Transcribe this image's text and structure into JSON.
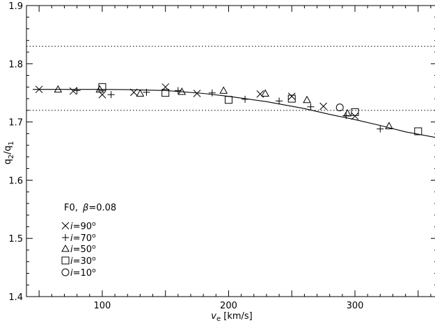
{
  "chart_data": {
    "type": "scatter",
    "title": "",
    "xlabel_main": "v",
    "xlabel_sub": "e",
    "xlabel_unit": " [km/s]",
    "ylabel_main": "q",
    "ylabel_sub1": "2",
    "ylabel_slash": "/q",
    "ylabel_sub2": "1",
    "xlim": [
      40,
      365
    ],
    "ylim": [
      1.4,
      1.9
    ],
    "xticks": [
      100,
      200,
      300
    ],
    "yticks": [
      1.4,
      1.5,
      1.6,
      1.7,
      1.8,
      1.9
    ],
    "ytick_labels": [
      "1.4",
      "1.5",
      "1.6",
      "1.7",
      "1.8",
      "1.9"
    ],
    "hlines": [
      1.83,
      1.72
    ],
    "hline_style": "dotted",
    "annotation": {
      "model": "F0,",
      "beta_symbol": "β",
      "beta_value": "=0.08"
    },
    "legend_placement": "bottom-left",
    "fit_curve": {
      "x": [
        45,
        80,
        100,
        120,
        150,
        180,
        200,
        230,
        260,
        280,
        300,
        320,
        340,
        365
      ],
      "y": [
        1.756,
        1.756,
        1.756,
        1.7555,
        1.754,
        1.749,
        1.744,
        1.735,
        1.723,
        1.713,
        1.704,
        1.694,
        1.683,
        1.673
      ]
    },
    "series": [
      {
        "name": "i=90°",
        "label_i": "i",
        "label_val": "=90",
        "label_deg": "o",
        "marker": "x",
        "x": [
          50,
          77,
          100,
          125,
          150,
          175,
          225,
          250,
          275,
          300
        ],
        "y": [
          1.756,
          1.753,
          1.747,
          1.751,
          1.76,
          1.749,
          1.748,
          1.744,
          1.727,
          1.71
        ]
      },
      {
        "name": "i=70°",
        "label_i": "i",
        "label_val": "=70",
        "label_deg": "o",
        "marker": "plus",
        "x": [
          80,
          107,
          135,
          160,
          187,
          213,
          240,
          265,
          293,
          320
        ],
        "y": [
          1.754,
          1.747,
          1.751,
          1.754,
          1.75,
          1.739,
          1.736,
          1.726,
          1.711,
          1.688
        ]
      },
      {
        "name": "i=50°",
        "label_i": "i",
        "label_val": "=50",
        "label_deg": "o",
        "marker": "triangle",
        "x": [
          65,
          98,
          130,
          163,
          196,
          229,
          262,
          294,
          327
        ],
        "y": [
          1.756,
          1.756,
          1.749,
          1.752,
          1.754,
          1.749,
          1.738,
          1.715,
          1.693
        ]
      },
      {
        "name": "i=30°",
        "label_i": "i",
        "label_val": "=30",
        "label_deg": "o",
        "marker": "square",
        "x": [
          100,
          150,
          200,
          250,
          300,
          350
        ],
        "y": [
          1.76,
          1.75,
          1.738,
          1.74,
          1.717,
          1.684
        ]
      },
      {
        "name": "i=10°",
        "label_i": "i",
        "label_val": "=10",
        "label_deg": "o",
        "marker": "circle",
        "x": [
          288
        ],
        "y": [
          1.725
        ]
      }
    ]
  }
}
